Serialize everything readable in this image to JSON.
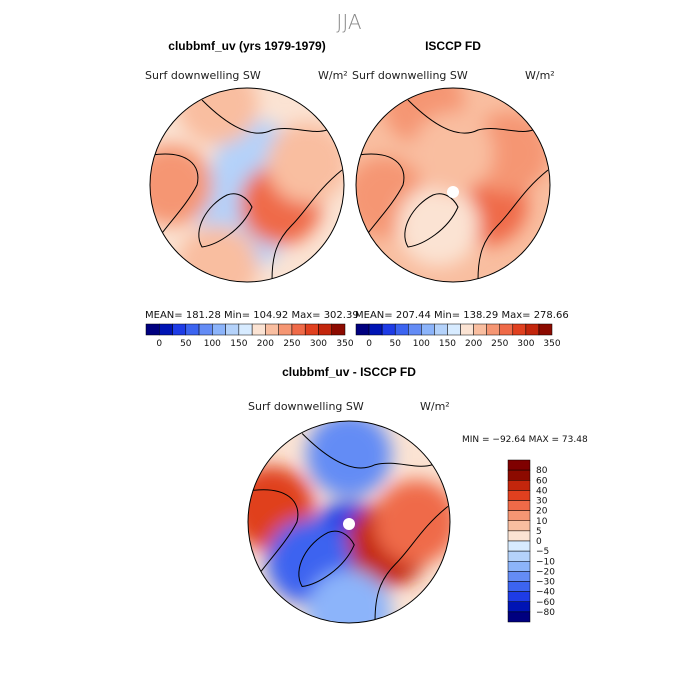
{
  "page_title": "JJA",
  "colors": {
    "background": "#ffffff",
    "coastline": "#000000"
  },
  "chart_data": [
    {
      "type": "heatmap",
      "projection": "north-polar-stereographic",
      "title": "clubbmf_uv (yrs 1979-1979)",
      "variable": "Surf downwelling SW",
      "units": "W/m²",
      "stats_text": "MEAN= 181.28   Min= 104.92   Max= 302.39",
      "mean": 181.28,
      "min": 104.92,
      "max": 302.39,
      "colorbar": {
        "levels": [
          0,
          25,
          50,
          75,
          100,
          125,
          150,
          175,
          200,
          225,
          250,
          275,
          300,
          325,
          350
        ],
        "tick_labels": [
          "0",
          "50",
          "100",
          "150",
          "200",
          "250",
          "300",
          "350"
        ],
        "colors": [
          "#00007f",
          "#0014b4",
          "#1e3ce6",
          "#3c64f0",
          "#648cf5",
          "#8cb4fa",
          "#b4d2fa",
          "#d7ebff",
          "#fbe3d3",
          "#f9bea0",
          "#f59673",
          "#ef6a48",
          "#e0401f",
          "#c3260c",
          "#8c0a00"
        ]
      },
      "field_regions": [
        {
          "lat": 70,
          "lon": 0,
          "value": 140
        },
        {
          "lat": 78,
          "lon": 200,
          "value": 145
        },
        {
          "lat": 80,
          "lon": 45,
          "value": 135
        },
        {
          "lat": 72,
          "lon": 300,
          "value": 270
        },
        {
          "lat": 60,
          "lon": 250,
          "value": 215
        },
        {
          "lat": 55,
          "lon": 90,
          "value": 225
        },
        {
          "lat": 50,
          "lon": 160,
          "value": 200
        },
        {
          "lat": 50,
          "lon": 20,
          "value": 215
        }
      ]
    },
    {
      "type": "heatmap",
      "projection": "north-polar-stereographic",
      "title": "ISCCP FD",
      "variable": "Surf downwelling SW",
      "units": "W/m²",
      "stats_text": "MEAN= 207.44   Min= 138.29   Max= 278.66",
      "mean": 207.44,
      "min": 138.29,
      "max": 278.66,
      "colorbar": {
        "levels": [
          0,
          25,
          50,
          75,
          100,
          125,
          150,
          175,
          200,
          225,
          250,
          275,
          300,
          325,
          350
        ],
        "tick_labels": [
          "0",
          "50",
          "100",
          "150",
          "200",
          "250",
          "300",
          "350"
        ],
        "colors": [
          "#00007f",
          "#0014b4",
          "#1e3ce6",
          "#3c64f0",
          "#648cf5",
          "#8cb4fa",
          "#b4d2fa",
          "#d7ebff",
          "#fbe3d3",
          "#f9bea0",
          "#f59673",
          "#ef6a48",
          "#e0401f",
          "#c3260c",
          "#8c0a00"
        ]
      },
      "field_regions": [
        {
          "lat": 85,
          "lon": 0,
          "value": 215
        },
        {
          "lat": 72,
          "lon": 300,
          "value": 255
        },
        {
          "lat": 60,
          "lon": 240,
          "value": 240
        },
        {
          "lat": 58,
          "lon": 80,
          "value": 240
        },
        {
          "lat": 70,
          "lon": 20,
          "value": 190
        },
        {
          "lat": 50,
          "lon": 160,
          "value": 235
        },
        {
          "lat": 75,
          "lon": 180,
          "value": 210
        }
      ]
    },
    {
      "type": "heatmap",
      "projection": "north-polar-stereographic",
      "title": "clubbmf_uv - ISCCP FD",
      "variable": "Surf downwelling SW",
      "units": "W/m²",
      "stats_text": "MIN = −92.64  MAX =  73.48",
      "min": -92.64,
      "max": 73.48,
      "colorbar": {
        "levels": [
          -80,
          -60,
          -40,
          -30,
          -20,
          -10,
          -5,
          0,
          5,
          10,
          20,
          30,
          40,
          60,
          80
        ],
        "tick_labels": [
          "80",
          "60",
          "40",
          "30",
          "20",
          "10",
          "5",
          "0",
          "−5",
          "−10",
          "−20",
          "−30",
          "−40",
          "−60",
          "−80"
        ],
        "colors": [
          "#00007f",
          "#0014b4",
          "#1e3ce6",
          "#3c64f0",
          "#648cf5",
          "#8cb4fa",
          "#b4d2fa",
          "#d7ebff",
          "#fbe3d3",
          "#f9bea0",
          "#f59673",
          "#ef6a48",
          "#e0401f",
          "#c3260c",
          "#8c0a00",
          "#7f0000"
        ]
      },
      "field_regions": [
        {
          "lat": 80,
          "lon": 0,
          "value": -60
        },
        {
          "lat": 70,
          "lon": 300,
          "value": 40
        },
        {
          "lat": 60,
          "lon": 270,
          "value": 20
        },
        {
          "lat": 55,
          "lon": 100,
          "value": 30
        },
        {
          "lat": 65,
          "lon": 45,
          "value": -40
        },
        {
          "lat": 60,
          "lon": 180,
          "value": -30
        },
        {
          "lat": 50,
          "lon": 0,
          "value": -20
        }
      ]
    }
  ]
}
